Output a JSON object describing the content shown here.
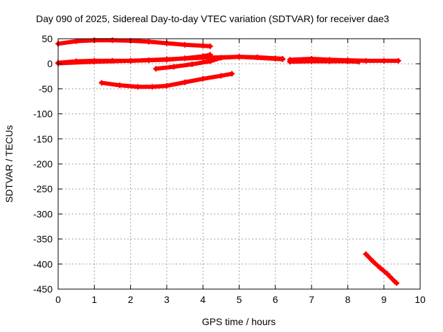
{
  "chart_data": {
    "type": "scatter",
    "title": "Day 090 of 2025, Sidereal Day-to-day VTEC variation (SDTVAR) for receiver dae3",
    "xlabel": "GPS time / hours",
    "ylabel": "SDTVAR / TECUs",
    "xlim": [
      0,
      10
    ],
    "ylim": [
      -450,
      50
    ],
    "xticks": [
      0,
      1,
      2,
      3,
      4,
      5,
      6,
      7,
      8,
      9,
      10
    ],
    "yticks": [
      50,
      0,
      -50,
      -100,
      -150,
      -200,
      -250,
      -300,
      -350,
      -400,
      -450
    ],
    "grid": true,
    "color": "#ff0000",
    "series": [
      {
        "points": [
          [
            0.0,
            40
          ],
          [
            0.5,
            45
          ],
          [
            1.0,
            47
          ],
          [
            1.5,
            47
          ],
          [
            2.0,
            46
          ],
          [
            2.5,
            44
          ],
          [
            3.0,
            41
          ],
          [
            3.5,
            38
          ],
          [
            4.0,
            36
          ],
          [
            4.2,
            35
          ]
        ]
      },
      {
        "points": [
          [
            0.0,
            2
          ],
          [
            0.5,
            5
          ],
          [
            1.0,
            6
          ],
          [
            1.5,
            6
          ],
          [
            2.0,
            6
          ],
          [
            2.5,
            7
          ],
          [
            3.0,
            8
          ],
          [
            3.5,
            11
          ],
          [
            4.0,
            15
          ],
          [
            4.2,
            18
          ]
        ]
      },
      {
        "points": [
          [
            0.0,
            1
          ],
          [
            1.0,
            4
          ],
          [
            2.0,
            6
          ],
          [
            3.0,
            9
          ],
          [
            4.0,
            12
          ],
          [
            5.0,
            14
          ],
          [
            6.0,
            10
          ],
          [
            6.2,
            9
          ]
        ]
      },
      {
        "points": [
          [
            2.7,
            -10
          ],
          [
            3.2,
            -6
          ],
          [
            3.7,
            -1
          ],
          [
            4.2,
            5
          ],
          [
            4.5,
            12
          ],
          [
            5.0,
            14
          ],
          [
            5.5,
            13
          ],
          [
            6.0,
            11
          ],
          [
            6.2,
            10
          ]
        ]
      },
      {
        "points": [
          [
            1.2,
            -38
          ],
          [
            1.7,
            -43
          ],
          [
            2.2,
            -46
          ],
          [
            2.6,
            -46
          ],
          [
            3.0,
            -44
          ],
          [
            3.5,
            -37
          ],
          [
            4.0,
            -30
          ],
          [
            4.5,
            -24
          ],
          [
            4.8,
            -20
          ]
        ]
      },
      {
        "points": [
          [
            6.4,
            8
          ],
          [
            7.0,
            10
          ],
          [
            7.5,
            8
          ],
          [
            8.0,
            7
          ],
          [
            8.5,
            6
          ],
          [
            9.0,
            6
          ],
          [
            9.4,
            6
          ]
        ]
      },
      {
        "points": [
          [
            6.4,
            4
          ],
          [
            7.0,
            5
          ],
          [
            7.5,
            5
          ],
          [
            8.0,
            5
          ],
          [
            8.3,
            4
          ]
        ]
      },
      {
        "points": [
          [
            8.5,
            -380
          ],
          [
            8.7,
            -395
          ],
          [
            8.9,
            -408
          ],
          [
            9.1,
            -420
          ],
          [
            9.3,
            -435
          ],
          [
            9.35,
            -438
          ]
        ]
      }
    ]
  }
}
